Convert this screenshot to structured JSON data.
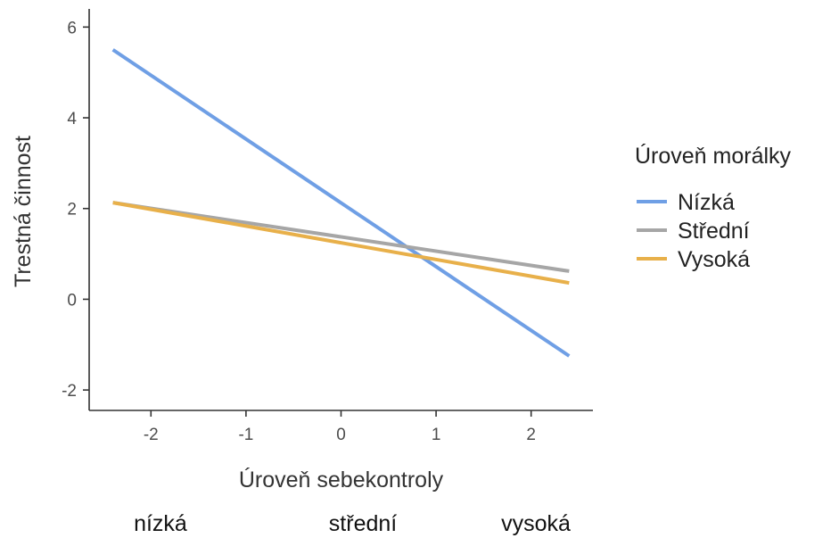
{
  "chart_data": {
    "type": "line",
    "title": "",
    "xlabel": "Úroveň sebekontroly",
    "ylabel": "Trestná činnost",
    "xlim": [
      -2.65,
      2.65
    ],
    "ylim": [
      -2.45,
      6.4
    ],
    "x_ticks": [
      -2,
      -1,
      0,
      1,
      2
    ],
    "y_ticks": [
      -2,
      0,
      2,
      4,
      6
    ],
    "x_tick_labels": [
      "-2",
      "-1",
      "0",
      "1",
      "2"
    ],
    "y_tick_labels": [
      "-2",
      "0",
      "2",
      "4",
      "6"
    ],
    "grid": false,
    "legend_position": "right",
    "legend_title": "Úroveň morálky",
    "series": [
      {
        "name": "Nízká",
        "color": "#6F9FE5",
        "x": [
          -2.4,
          2.4
        ],
        "y": [
          5.5,
          -1.25
        ]
      },
      {
        "name": "Střední",
        "color": "#A6A6A6",
        "x": [
          -2.4,
          2.4
        ],
        "y": [
          2.13,
          0.62
        ]
      },
      {
        "name": "Vysoká",
        "color": "#E8B04A",
        "x": [
          -2.4,
          2.4
        ],
        "y": [
          2.13,
          0.36
        ]
      }
    ],
    "bottom_labels": [
      "nízká",
      "střední",
      "vysoká"
    ]
  }
}
